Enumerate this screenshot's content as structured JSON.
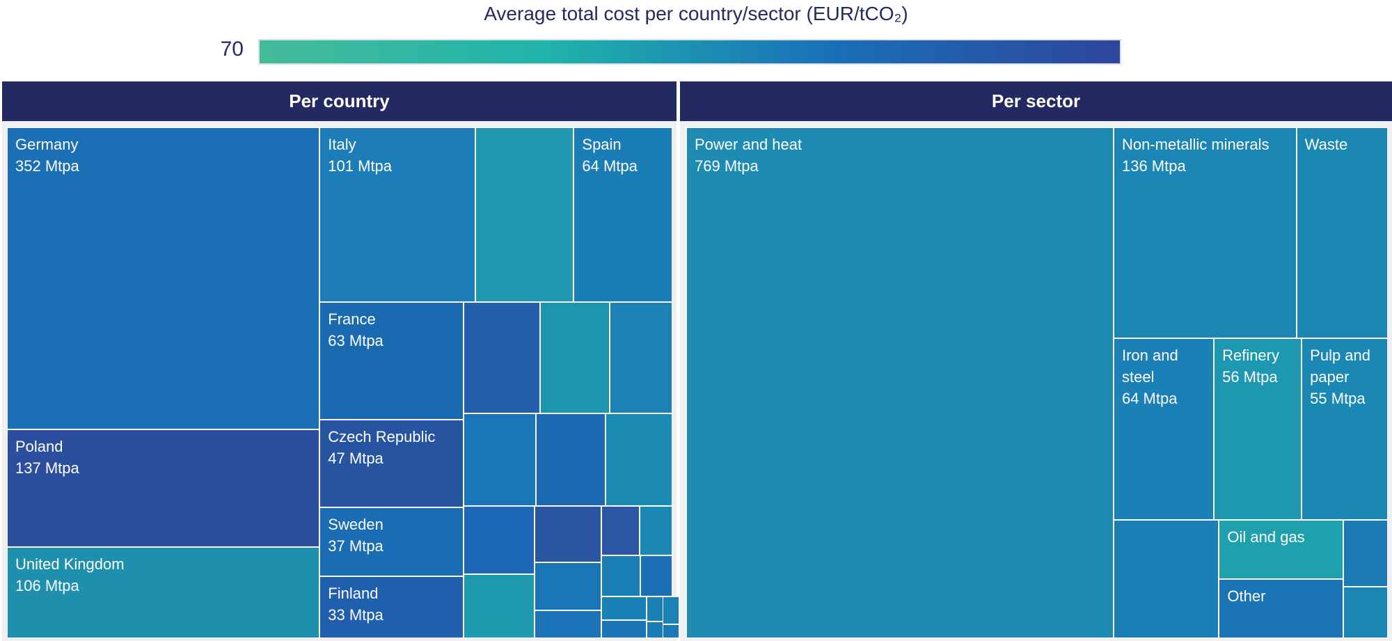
{
  "colorbar": {
    "title": "Average total cost per country/sector (EUR/tCO₂)",
    "ticks": [
      70
    ],
    "colors": [
      "#45bb9a",
      "#20b3ab",
      "#1a6fb9",
      "#2e469b"
    ]
  },
  "chart_data": [
    {
      "type": "treemap",
      "title": "Per country",
      "categories": [
        "Germany",
        "Poland",
        "United Kingdom",
        "Italy",
        null,
        "Spain",
        "France",
        "Czech Republic",
        "Sweden",
        "Finland",
        null,
        null,
        null,
        null,
        null,
        null,
        null,
        null,
        null,
        null,
        null,
        null,
        null,
        null,
        null,
        null,
        null,
        null,
        null,
        null,
        null
      ],
      "values": [
        352,
        137,
        106,
        101,
        64,
        64,
        63,
        47,
        37,
        33,
        32,
        29,
        26,
        25,
        24,
        23,
        18,
        17,
        14,
        12,
        7,
        7,
        6,
        6,
        5,
        4,
        3,
        1.5,
        1,
        1,
        0.5
      ],
      "value_labels": [
        "352 Mtpa",
        "137 Mtpa",
        "106 Mtpa",
        "101 Mtpa",
        null,
        "64 Mtpa",
        "63 Mtpa",
        "47 Mtpa",
        "37 Mtpa",
        "33 Mtpa",
        null,
        null,
        null,
        null,
        null,
        null,
        null,
        null,
        null,
        null,
        null,
        null,
        null,
        null,
        null,
        null,
        null,
        null,
        null,
        null,
        null
      ],
      "colors": [
        "#1a6fb5",
        "#2b4f9e",
        "#1f8fae",
        "#1d7db8",
        "#1f98b0",
        "#1b7db6",
        "#1a6ab2",
        "#2654a0",
        "#1a6db3",
        "#1f5fad",
        "#245fab",
        "#1d95ae",
        "#1c82b6",
        "#1b76b7",
        "#1b68b3",
        "#1c8bb4",
        "#1b67b5",
        "#1f9aae",
        "#2a55a0",
        "#1b76b7",
        "#1b72b6",
        "#2a56a3",
        "#1b88b3",
        "#1b7fb6",
        "#1a6fb5",
        "#1b80b6",
        "#1b74b5",
        "#1b80b6",
        "#1b7cb6",
        "#1b82b5",
        "#1b7ab5"
      ]
    },
    {
      "type": "treemap",
      "title": "Per sector",
      "categories": [
        "Power and heat",
        "Non-metallic minerals",
        "Waste",
        "Iron and steel",
        "Refinery",
        "Pulp and paper",
        null,
        "Oil and gas",
        "Other",
        null,
        null
      ],
      "values": [
        769,
        136,
        68,
        64,
        56,
        55,
        44,
        26,
        26,
        10.5,
        8
      ],
      "value_labels": [
        "769 Mtpa",
        "136 Mtpa",
        null,
        "64 Mtpa",
        "56 Mtpa",
        "55 Mtpa",
        null,
        null,
        null,
        null,
        null
      ],
      "colors": [
        "#1e8bb3",
        "#1b86b3",
        "#1b88b3",
        "#1b80b5",
        "#1e97b0",
        "#1b88b3",
        "#1b7fb5",
        "#1fa0ad",
        "#1a74b4",
        "#1b7ab5",
        "#1b85b3"
      ]
    }
  ]
}
